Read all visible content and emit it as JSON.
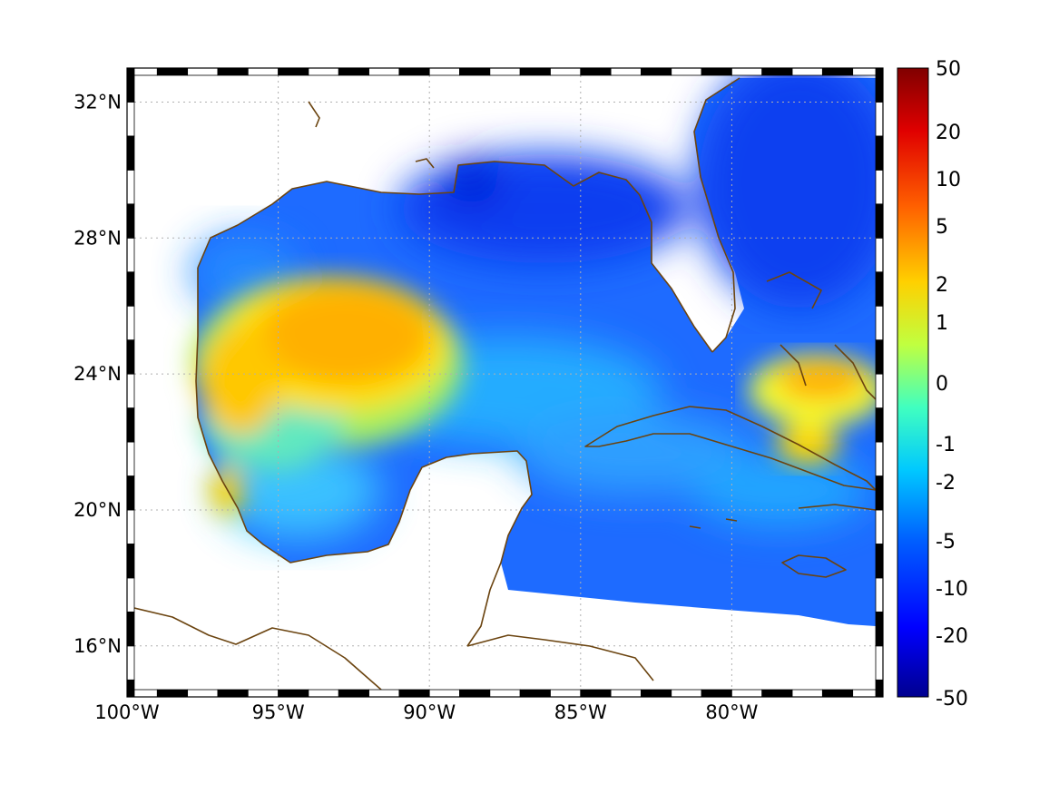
{
  "map": {
    "lon_range": [
      -100,
      -75
    ],
    "lat_range": [
      14.5,
      33
    ],
    "lon_ticks": [
      {
        "value": -100,
        "label": "100°W"
      },
      {
        "value": -95,
        "label": "95°W"
      },
      {
        "value": -90,
        "label": "90°W"
      },
      {
        "value": -85,
        "label": "85°W"
      },
      {
        "value": -80,
        "label": "80°W"
      }
    ],
    "lat_ticks": [
      {
        "value": 16,
        "label": "16°N"
      },
      {
        "value": 20,
        "label": "20°N"
      },
      {
        "value": 24,
        "label": "24°N"
      },
      {
        "value": 28,
        "label": "28°N"
      },
      {
        "value": 32,
        "label": "32°N"
      }
    ],
    "grid": true,
    "coastline_color": "#6b4410"
  },
  "colorbar": {
    "labels": [
      "50",
      "20",
      "10",
      "5",
      "2",
      "1",
      "0",
      "-1",
      "-2",
      "-5",
      "-10",
      "-20",
      "-50"
    ],
    "colors": [
      "#00008f",
      "#0000ff",
      "#0060ff",
      "#00c8ff",
      "#40ffc0",
      "#c0ff40",
      "#ffd000",
      "#ff6000",
      "#e00000",
      "#800000"
    ]
  },
  "field": {
    "west_gulf_anomaly": "orange",
    "east_gulf": "blue",
    "bahamas_anomaly": "orange"
  }
}
